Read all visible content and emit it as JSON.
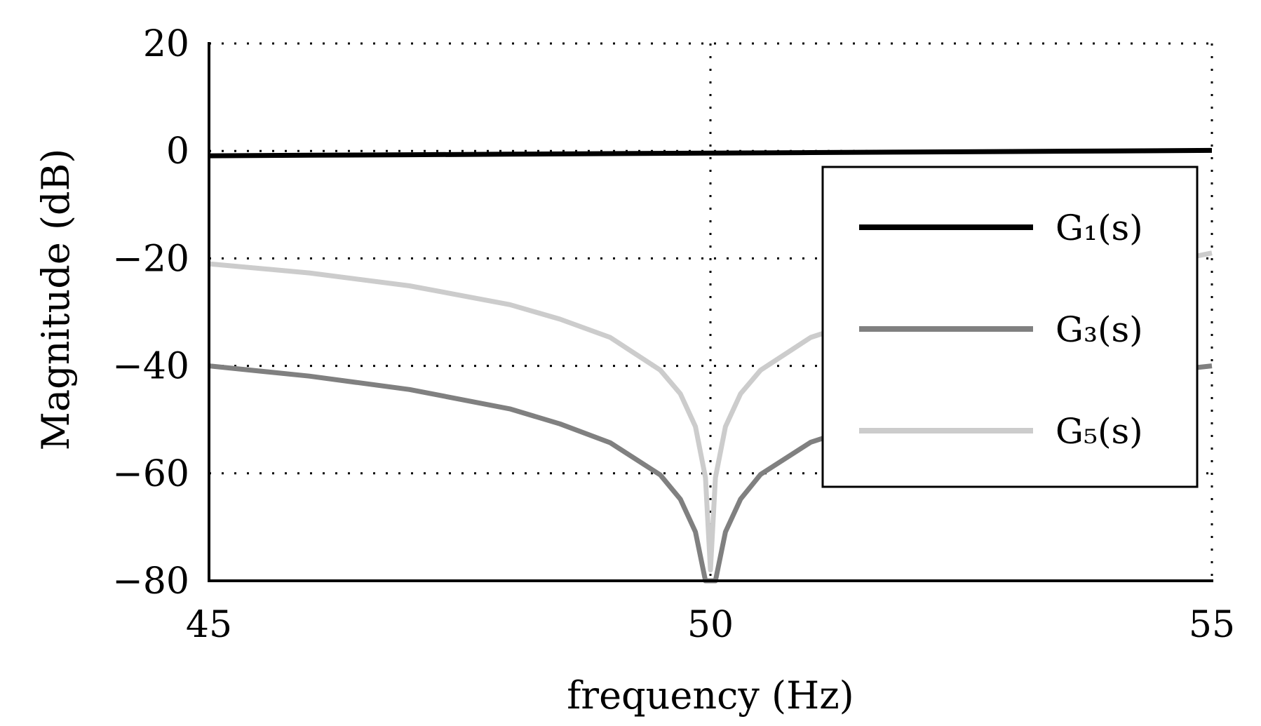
{
  "chart_data": {
    "type": "line",
    "xlabel": "frequency (Hz)",
    "ylabel": "Magnitude (dB)",
    "xlim": [
      45,
      55
    ],
    "ylim": [
      -80,
      20
    ],
    "xticks": [
      45,
      50,
      55
    ],
    "yticks": [
      20,
      0,
      -20,
      -40,
      -60,
      -80
    ],
    "xtick_labels": [
      "45",
      "50",
      "55"
    ],
    "ytick_labels": [
      "20",
      "0",
      "−20",
      "−40",
      "−60",
      "−80"
    ],
    "grid": true,
    "legend_position": "right",
    "series": [
      {
        "name": "G₁(s)",
        "color": "#000000",
        "x": [
          45,
          46,
          47,
          48,
          49,
          50,
          51,
          52,
          53,
          54,
          55
        ],
        "y": [
          -0.9,
          -0.8,
          -0.7,
          -0.6,
          -0.5,
          -0.4,
          -0.3,
          -0.2,
          -0.1,
          0.0,
          0.1
        ]
      },
      {
        "name": "G₃(s)",
        "color": "#808080",
        "x": [
          45,
          46,
          47,
          48,
          48.5,
          49,
          49.5,
          49.7,
          49.85,
          49.95,
          50.05,
          50.15,
          50.3,
          50.5,
          51,
          52,
          53,
          54,
          55
        ],
        "y": [
          -40.0,
          -41.9,
          -44.4,
          -48.0,
          -50.8,
          -54.3,
          -60.3,
          -64.8,
          -70.9,
          -80.0,
          -80.0,
          -70.9,
          -64.8,
          -60.2,
          -54.2,
          -48.1,
          -44.5,
          -42.0,
          -40.0
        ]
      },
      {
        "name": "G₅(s)",
        "color": "#cccccc",
        "x": [
          45,
          46,
          47,
          48,
          48.5,
          49,
          49.5,
          49.7,
          49.85,
          49.95,
          50,
          50.05,
          50.15,
          50.3,
          50.5,
          51,
          52,
          53,
          54,
          55
        ],
        "y": [
          -21.0,
          -22.7,
          -25.1,
          -28.6,
          -31.3,
          -34.7,
          -40.8,
          -45.2,
          -51.3,
          -60.8,
          -78.0,
          -60.8,
          -51.3,
          -45.2,
          -40.8,
          -34.7,
          -28.6,
          -25.1,
          -22.7,
          -19.0
        ]
      }
    ]
  }
}
